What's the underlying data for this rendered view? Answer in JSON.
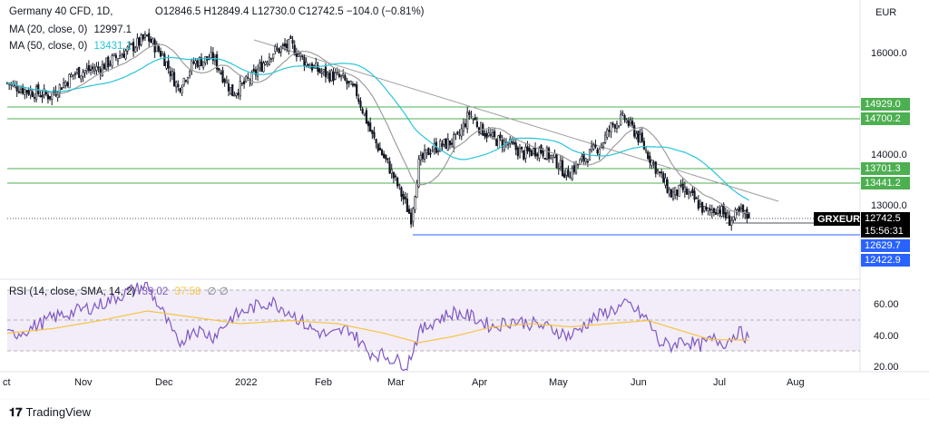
{
  "header": {
    "symbol": "Germany 40 CFD, 1D,",
    "ohlc": "O12846.5  H12849.4  L12730.0  C12742.5  −104.0 (−0.81%)",
    "ma20_label": "MA (20, close, 0)",
    "ma20_value": "12997.1",
    "ma50_label": "MA (50, close, 0)",
    "ma50_value": "13431.1",
    "rsi_label": "RSI (14, close, SMA, 14, 2)",
    "rsi_value": "39.02",
    "rsi_sma_value": "37.58",
    "rsi_extra": "∅ ∅"
  },
  "currency_label": "EUR",
  "price_axis": {
    "ticks": [
      "16000.0",
      "14000.0",
      "13000.0"
    ]
  },
  "rsi_axis": {
    "ticks": [
      "60.00",
      "40.00",
      "20.00"
    ]
  },
  "time_axis": {
    "labels": [
      "ct",
      "Nov",
      "Dec",
      "2022",
      "Feb",
      "Mar",
      "Apr",
      "May",
      "Jun",
      "Jul",
      "Aug"
    ]
  },
  "price_tags": [
    {
      "text": "14929.0",
      "bg": "#4caf50",
      "fg": "#ffffff"
    },
    {
      "text": "14700.2",
      "bg": "#4caf50",
      "fg": "#ffffff"
    },
    {
      "text": "13701.3",
      "bg": "#4caf50",
      "fg": "#ffffff"
    },
    {
      "text": "13441.2",
      "bg": "#4caf50",
      "fg": "#ffffff"
    },
    {
      "text": "12742.5",
      "bg": "#000000",
      "fg": "#ffffff"
    },
    {
      "text": "15:56:31",
      "bg": "#000000",
      "fg": "#ffffff"
    },
    {
      "text": "12629.7",
      "bg": "#2962ff",
      "fg": "#ffffff"
    },
    {
      "text": "12422.9",
      "bg": "#2962ff",
      "fg": "#ffffff"
    }
  ],
  "symbol_tag": "GRXEUR",
  "branding": "TradingView",
  "colors": {
    "candle": "#131722",
    "ma20": "#9e9e9e",
    "ma50": "#26c6da",
    "support": "#4caf50",
    "low_line": "#2962ff",
    "rsi": "#7e57c2",
    "rsi_sma": "#f6c343"
  },
  "chart_data": {
    "type": "candlestick",
    "instrument": "Germany 40 CFD",
    "timeframe": "1D",
    "last": {
      "open": 12846.5,
      "high": 12849.4,
      "low": 12730.0,
      "close": 12742.5,
      "change": -104.0,
      "change_pct": -0.81
    },
    "y_axis_ticks": [
      16000.0,
      14000.0,
      13000.0
    ],
    "horizontal_levels": [
      14929.0,
      14700.2,
      13701.3,
      13441.2,
      12629.7,
      12422.9
    ],
    "x_axis_labels": [
      "ct",
      "Nov",
      "Dec",
      "2022",
      "Feb",
      "Mar",
      "Apr",
      "May",
      "Jun",
      "Jul",
      "Aug"
    ],
    "close_path": [
      [
        0,
        15400
      ],
      [
        10,
        15250
      ],
      [
        22,
        15150
      ],
      [
        35,
        15600
      ],
      [
        48,
        15700
      ],
      [
        62,
        16050
      ],
      [
        72,
        16300
      ],
      [
        80,
        15950
      ],
      [
        88,
        15300
      ],
      [
        96,
        15800
      ],
      [
        106,
        15900
      ],
      [
        116,
        15200
      ],
      [
        126,
        15500
      ],
      [
        136,
        16000
      ],
      [
        146,
        16150
      ],
      [
        154,
        15800
      ],
      [
        162,
        15600
      ],
      [
        172,
        15500
      ],
      [
        180,
        15200
      ],
      [
        188,
        14350
      ],
      [
        196,
        13800
      ],
      [
        202,
        13300
      ],
      [
        208,
        12750
      ],
      [
        212,
        13800
      ],
      [
        218,
        14100
      ],
      [
        226,
        14200
      ],
      [
        232,
        14300
      ],
      [
        238,
        14800
      ],
      [
        244,
        14500
      ],
      [
        250,
        14300
      ],
      [
        258,
        14200
      ],
      [
        266,
        14000
      ],
      [
        274,
        14100
      ],
      [
        282,
        13900
      ],
      [
        288,
        13600
      ],
      [
        294,
        13800
      ],
      [
        300,
        14000
      ],
      [
        306,
        14200
      ],
      [
        312,
        14600
      ],
      [
        318,
        14700
      ],
      [
        324,
        14400
      ],
      [
        330,
        14000
      ],
      [
        336,
        13600
      ],
      [
        342,
        13200
      ],
      [
        348,
        13300
      ],
      [
        354,
        13100
      ],
      [
        360,
        12850
      ],
      [
        366,
        12950
      ],
      [
        372,
        12700
      ],
      [
        378,
        12850
      ],
      [
        382,
        12742.5
      ]
    ],
    "rsi": {
      "ticks": [
        60.0,
        40.0,
        20.0
      ],
      "last": 39.02,
      "sma_last": 37.58,
      "values": [
        [
          0,
          40
        ],
        [
          12,
          45
        ],
        [
          24,
          52
        ],
        [
          36,
          56
        ],
        [
          48,
          60
        ],
        [
          62,
          68
        ],
        [
          72,
          72
        ],
        [
          80,
          55
        ],
        [
          88,
          35
        ],
        [
          96,
          45
        ],
        [
          106,
          40
        ],
        [
          116,
          52
        ],
        [
          126,
          58
        ],
        [
          136,
          62
        ],
        [
          146,
          55
        ],
        [
          156,
          45
        ],
        [
          166,
          40
        ],
        [
          176,
          45
        ],
        [
          186,
          30
        ],
        [
          194,
          28
        ],
        [
          200,
          25
        ],
        [
          206,
          22
        ],
        [
          212,
          42
        ],
        [
          220,
          50
        ],
        [
          230,
          55
        ],
        [
          240,
          52
        ],
        [
          250,
          46
        ],
        [
          260,
          50
        ],
        [
          270,
          48
        ],
        [
          280,
          45
        ],
        [
          290,
          40
        ],
        [
          300,
          50
        ],
        [
          310,
          56
        ],
        [
          320,
          60
        ],
        [
          330,
          50
        ],
        [
          336,
          36
        ],
        [
          342,
          34
        ],
        [
          348,
          38
        ],
        [
          356,
          34
        ],
        [
          364,
          38
        ],
        [
          370,
          36
        ],
        [
          376,
          43
        ],
        [
          382,
          39.02
        ]
      ],
      "sma": [
        [
          0,
          42
        ],
        [
          24,
          45
        ],
        [
          48,
          50
        ],
        [
          72,
          56
        ],
        [
          96,
          52
        ],
        [
          120,
          48
        ],
        [
          146,
          50
        ],
        [
          170,
          48
        ],
        [
          194,
          42
        ],
        [
          212,
          36
        ],
        [
          230,
          40
        ],
        [
          250,
          46
        ],
        [
          270,
          48
        ],
        [
          290,
          46
        ],
        [
          310,
          48
        ],
        [
          330,
          50
        ],
        [
          346,
          44
        ],
        [
          362,
          38
        ],
        [
          382,
          37.58
        ]
      ]
    }
  }
}
